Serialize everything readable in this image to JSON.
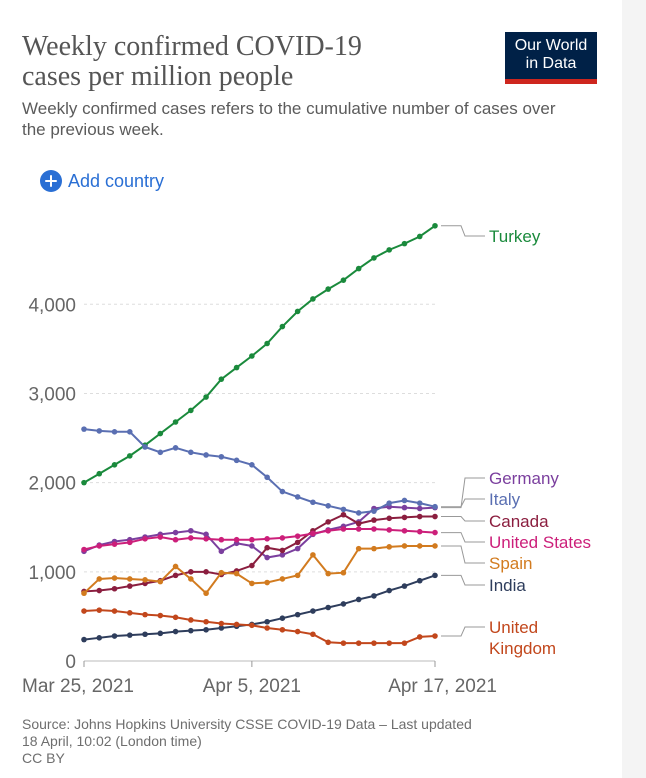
{
  "header": {
    "title_line1": "Weekly confirmed COVID-19",
    "title_line2": "cases per million people",
    "subtitle": "Weekly confirmed cases refers to the cumulative number of cases over the previous week.",
    "logo_line1": "Our World",
    "logo_line2": "in Data",
    "add_country_label": "Add country"
  },
  "footer": {
    "source": "Source: Johns Hopkins University CSSE COVID-19 Data – Last updated",
    "updated": "18 April, 10:02 (London time)",
    "license": "CC BY"
  },
  "chart_data": {
    "type": "line",
    "title": "Weekly confirmed COVID-19 cases per million people",
    "x": [
      "2021-03-25",
      "2021-03-26",
      "2021-03-27",
      "2021-03-28",
      "2021-03-29",
      "2021-03-30",
      "2021-03-31",
      "2021-04-01",
      "2021-04-02",
      "2021-04-03",
      "2021-04-04",
      "2021-04-05",
      "2021-04-06",
      "2021-04-07",
      "2021-04-08",
      "2021-04-09",
      "2021-04-10",
      "2021-04-11",
      "2021-04-12",
      "2021-04-13",
      "2021-04-14",
      "2021-04-15",
      "2021-04-16",
      "2021-04-17"
    ],
    "x_ticks": [
      "Mar 25, 2021",
      "Apr 5, 2021",
      "Apr 17, 2021"
    ],
    "x_tick_positions": [
      0,
      11,
      23
    ],
    "ylim": [
      0,
      4900
    ],
    "y_ticks": [
      0,
      1000,
      2000,
      3000,
      4000
    ],
    "y_tick_labels": [
      "0",
      "1,000",
      "2,000",
      "3,000",
      "4,000"
    ],
    "grid": "horizontal dashed",
    "legend": "end-of-line labels on right",
    "series": [
      {
        "name": "Turkey",
        "color": "#1a8a3c",
        "values": [
          2000,
          2100,
          2200,
          2300,
          2420,
          2550,
          2680,
          2810,
          2960,
          3160,
          3290,
          3420,
          3560,
          3750,
          3920,
          4060,
          4170,
          4270,
          4400,
          4520,
          4610,
          4680,
          4760,
          4880
        ]
      },
      {
        "name": "Germany",
        "color": "#7b3f9e",
        "values": [
          1230,
          1300,
          1340,
          1360,
          1390,
          1420,
          1440,
          1460,
          1420,
          1230,
          1320,
          1290,
          1160,
          1190,
          1260,
          1420,
          1470,
          1510,
          1560,
          1710,
          1730,
          1720,
          1710,
          1720
        ]
      },
      {
        "name": "Italy",
        "color": "#5a6fb2",
        "values": [
          2600,
          2580,
          2570,
          2570,
          2400,
          2340,
          2390,
          2340,
          2310,
          2290,
          2250,
          2200,
          2060,
          1900,
          1840,
          1780,
          1740,
          1700,
          1660,
          1680,
          1770,
          1800,
          1770,
          1730
        ]
      },
      {
        "name": "Canada",
        "color": "#8b1e3f",
        "values": [
          780,
          790,
          810,
          840,
          870,
          900,
          960,
          1000,
          1000,
          970,
          1010,
          1070,
          1270,
          1240,
          1330,
          1460,
          1560,
          1640,
          1540,
          1580,
          1600,
          1610,
          1620,
          1620
        ]
      },
      {
        "name": "United States",
        "color": "#cc1f7a",
        "values": [
          1250,
          1290,
          1310,
          1330,
          1370,
          1390,
          1360,
          1380,
          1370,
          1360,
          1360,
          1360,
          1370,
          1380,
          1400,
          1430,
          1460,
          1480,
          1480,
          1480,
          1470,
          1460,
          1450,
          1440
        ]
      },
      {
        "name": "Spain",
        "color": "#d27b1f",
        "values": [
          760,
          920,
          930,
          920,
          910,
          890,
          1060,
          920,
          760,
          990,
          980,
          870,
          880,
          920,
          960,
          1190,
          980,
          990,
          1260,
          1260,
          1280,
          1290,
          1290,
          1290
        ]
      },
      {
        "name": "India",
        "color": "#2e3d5c",
        "values": [
          240,
          260,
          280,
          290,
          300,
          310,
          330,
          340,
          350,
          370,
          390,
          410,
          440,
          480,
          520,
          560,
          600,
          640,
          690,
          730,
          790,
          840,
          900,
          960
        ]
      },
      {
        "name": "United Kingdom",
        "color": "#c2471c",
        "values": [
          560,
          570,
          560,
          540,
          520,
          510,
          490,
          460,
          440,
          420,
          410,
          400,
          370,
          350,
          330,
          300,
          210,
          200,
          200,
          200,
          200,
          200,
          270,
          280
        ]
      }
    ],
    "label_lines": {
      "Turkey": [
        "Turkey"
      ],
      "Germany": [
        "Germany"
      ],
      "Italy": [
        "Italy"
      ],
      "Canada": [
        "Canada"
      ],
      "United States": [
        "United States"
      ],
      "Spain": [
        "Spain"
      ],
      "India": [
        "India"
      ],
      "United Kingdom": [
        "United",
        "Kingdom"
      ]
    }
  }
}
